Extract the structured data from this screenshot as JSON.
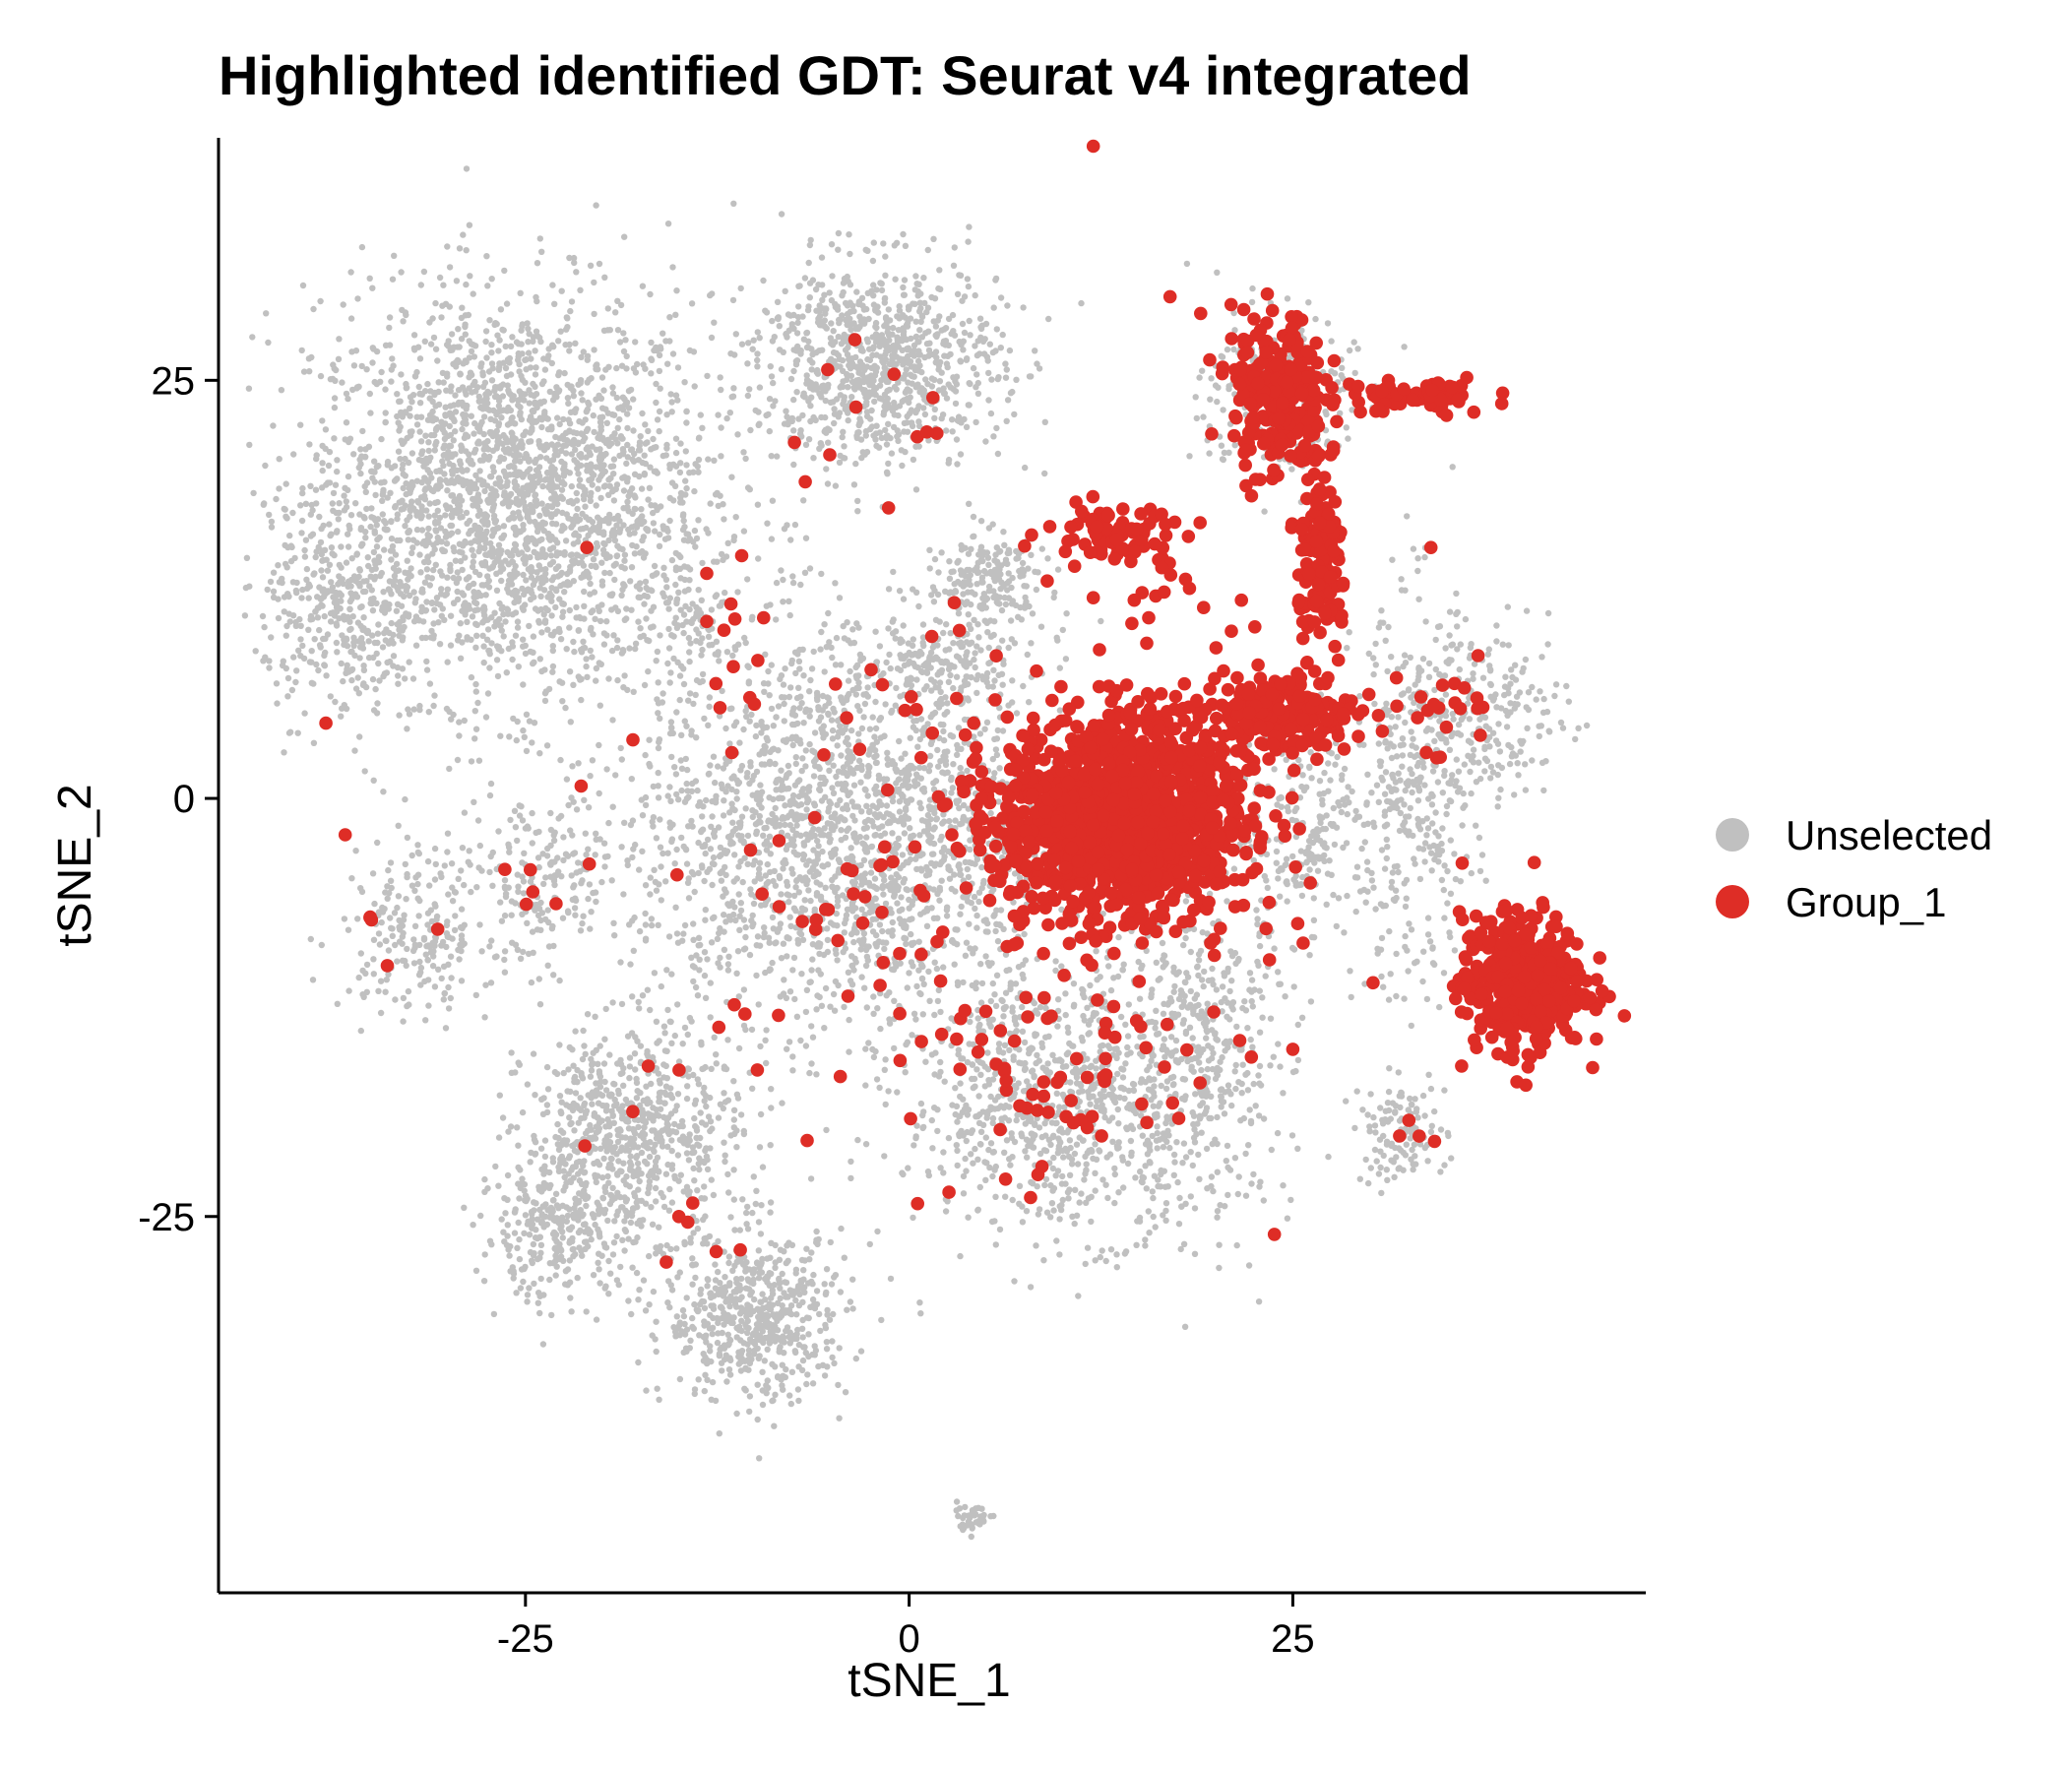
{
  "chart_data": {
    "type": "scatter",
    "title": "Highlighted identified GDT:  Seurat v4 integrated",
    "xlabel": "tSNE_1",
    "ylabel": "tSNE_2",
    "xlim": [
      -45,
      48
    ],
    "ylim": [
      -47.5,
      39.5
    ],
    "x_ticks": [
      -25,
      0,
      25
    ],
    "y_ticks": [
      -25,
      0,
      25
    ],
    "x_tick_labels": [
      "-25",
      "0",
      "25"
    ],
    "y_tick_labels": [
      "-25",
      "0",
      "25"
    ],
    "grid": false,
    "legend": {
      "position": "right",
      "entries": [
        "Unselected",
        "Group_1"
      ]
    },
    "series": [
      {
        "name": "Unselected",
        "color": "#c0c0c0",
        "clusters": [
          {
            "cx": -26,
            "cy": 18,
            "sx": 6.5,
            "sy": 6,
            "n": 2600
          },
          {
            "cx": -37,
            "cy": 11,
            "sx": 2.5,
            "sy": 3,
            "n": 300
          },
          {
            "cx": -32,
            "cy": -8,
            "sx": 2.5,
            "sy": 2.5,
            "n": 220
          },
          {
            "cx": -24,
            "cy": -5,
            "sx": 2.5,
            "sy": 2.5,
            "n": 180
          },
          {
            "cx": -18,
            "cy": -20,
            "sx": 3.5,
            "sy": 3,
            "n": 700
          },
          {
            "cx": -23,
            "cy": -26,
            "sx": 2.5,
            "sy": 2,
            "n": 300
          },
          {
            "cx": -10,
            "cy": -31,
            "sx": 3,
            "sy": 2.5,
            "n": 600
          },
          {
            "cx": -2,
            "cy": 26,
            "sx": 4,
            "sy": 3,
            "n": 900
          },
          {
            "cx": 5,
            "cy": 13,
            "sx": 2,
            "sy": 1.5,
            "n": 200
          },
          {
            "cx": 2,
            "cy": 8,
            "sx": 3,
            "sy": 1,
            "n": 150
          },
          {
            "cx": -4,
            "cy": -2,
            "sx": 7,
            "sy": 6,
            "n": 2200
          },
          {
            "cx": 10,
            "cy": -18,
            "sx": 5,
            "sy": 4,
            "n": 900
          },
          {
            "cx": 19,
            "cy": -15,
            "sx": 3,
            "sy": 5,
            "n": 400
          },
          {
            "cx": 26,
            "cy": -2,
            "sx": 2.5,
            "sy": 3,
            "n": 250
          },
          {
            "cx": 33,
            "cy": 0,
            "sx": 2,
            "sy": 6,
            "n": 350
          },
          {
            "cx": 38,
            "cy": 5,
            "sx": 2.5,
            "sy": 2.5,
            "n": 200
          },
          {
            "cx": 32,
            "cy": -20,
            "sx": 1.5,
            "sy": 1.5,
            "n": 120
          },
          {
            "cx": 4,
            "cy": -43,
            "sx": 0.8,
            "sy": 0.4,
            "n": 40
          },
          {
            "cx": -14,
            "cy": 11,
            "sx": 1.2,
            "sy": 1.2,
            "n": 60
          },
          {
            "cx": 24,
            "cy": 24,
            "sx": 2.5,
            "sy": 2.5,
            "n": 250
          }
        ]
      },
      {
        "name": "Group_1",
        "color": "#de2d26",
        "clusters": [
          {
            "cx": 14,
            "cy": -1,
            "sx": 4,
            "sy": 3,
            "n": 1400
          },
          {
            "cx": 24,
            "cy": 5,
            "sx": 2.5,
            "sy": 1.2,
            "n": 200
          },
          {
            "cx": 40,
            "cy": -11,
            "sx": 2,
            "sy": 2,
            "n": 450
          },
          {
            "cx": 24,
            "cy": 24,
            "sx": 1.5,
            "sy": 2.5,
            "n": 260
          },
          {
            "cx": 27,
            "cy": 14,
            "sx": 0.8,
            "sy": 2.5,
            "n": 130
          },
          {
            "cx": 33,
            "cy": 24,
            "sx": 2.5,
            "sy": 0.6,
            "n": 70
          },
          {
            "cx": 13,
            "cy": 16,
            "sx": 2,
            "sy": 0.8,
            "n": 70
          },
          {
            "cx": 16,
            "cy": 14,
            "sx": 1,
            "sy": 1.5,
            "n": 20
          },
          {
            "cx": 3,
            "cy": -5,
            "sx": 10,
            "sy": 8,
            "n": 130
          },
          {
            "cx": 11,
            "cy": -17,
            "sx": 5,
            "sy": 3,
            "n": 60
          },
          {
            "cx": 35,
            "cy": 5,
            "sx": 2,
            "sy": 1.5,
            "n": 20
          },
          {
            "cx": -12,
            "cy": 9,
            "sx": 1.5,
            "sy": 3,
            "n": 12
          },
          {
            "cx": -2,
            "cy": 22,
            "sx": 3,
            "sy": 3,
            "n": 12
          },
          {
            "cx": -35,
            "cy": -6,
            "sx": 1,
            "sy": 2,
            "n": 5
          },
          {
            "cx": -23,
            "cy": -4,
            "sx": 2,
            "sy": 2,
            "n": 5
          },
          {
            "cx": -14,
            "cy": -26,
            "sx": 2,
            "sy": 1.5,
            "n": 4
          },
          {
            "cx": 33,
            "cy": -20,
            "sx": 1,
            "sy": 1,
            "n": 4
          }
        ],
        "points": [
          [
            12,
            39
          ],
          [
            17,
            30
          ],
          [
            19,
            29
          ],
          [
            -21,
            15
          ],
          [
            -38,
            4.5
          ],
          [
            -18,
            3.5
          ],
          [
            -34,
            -10
          ],
          [
            -17,
            -16
          ],
          [
            -15,
            -25
          ],
          [
            -11,
            -27
          ],
          [
            25,
            -15
          ],
          [
            36,
            -16
          ],
          [
            20,
            9
          ],
          [
            21,
            10
          ],
          [
            9,
            13
          ],
          [
            12,
            12
          ],
          [
            34,
            15
          ],
          [
            37,
            6
          ]
        ]
      }
    ]
  }
}
